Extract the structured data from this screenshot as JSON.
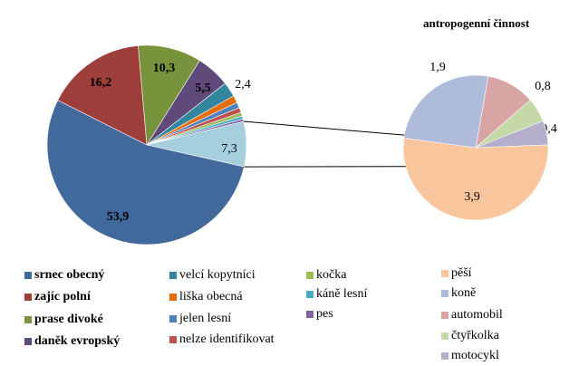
{
  "chart_data": [
    {
      "type": "pie",
      "title": "",
      "slices": [
        {
          "name": "prase divoké",
          "value": 10.3,
          "color": "#77933c",
          "label": "10,3",
          "bold": true
        },
        {
          "name": "daněk evropský",
          "value": 5.5,
          "color": "#604a7b",
          "label": "5,5",
          "bold": true
        },
        {
          "name": "velcí kopytníci",
          "value": 2.4,
          "color": "#31859c",
          "label": "2,4",
          "bold": false
        },
        {
          "name": "liška obecná",
          "value": 1.2,
          "color": "#e46c0a",
          "label": ""
        },
        {
          "name": "jelen lesní",
          "value": 0.9,
          "color": "#4f81bd",
          "label": ""
        },
        {
          "name": "nelze identifikovat",
          "value": 0.8,
          "color": "#c0504d",
          "label": ""
        },
        {
          "name": "kočka",
          "value": 0.6,
          "color": "#9bbb59",
          "label": ""
        },
        {
          "name": "káně lesní",
          "value": 0.5,
          "color": "#4bacc6",
          "label": ""
        },
        {
          "name": "pes",
          "value": 0.4,
          "color": "#8064a2",
          "label": ""
        },
        {
          "name": "antropogenní činnost",
          "value": 7.3,
          "color": "#a5cfdc",
          "label": "7,3",
          "bold": false
        },
        {
          "name": "srnec obecný",
          "value": 53.9,
          "color": "#41699c",
          "label": "53,9",
          "bold": true
        },
        {
          "name": "zajíc polní",
          "value": 16.2,
          "color": "#9e3f3c",
          "label": "16,2",
          "bold": true
        }
      ]
    },
    {
      "type": "pie",
      "title": "antropogenní činnost",
      "slices": [
        {
          "name": "automobil",
          "value": 0.8,
          "color": "#d9a5a4",
          "label": "0,8"
        },
        {
          "name": "čtyřkolka",
          "value": 0.4,
          "color": "#c4d8a8",
          "label": "0,4"
        },
        {
          "name": "motocykl",
          "value": 0.4,
          "color": "#b4aecb",
          "label": "0,4"
        },
        {
          "name": "pěší",
          "value": 3.9,
          "color": "#f9c59c",
          "label": "3,9"
        },
        {
          "name": "koně",
          "value": 1.9,
          "color": "#aebbd9",
          "label": "1,9"
        }
      ]
    }
  ],
  "legend": [
    {
      "name": "srnec obecný",
      "color": "#41699c",
      "bold": true
    },
    {
      "name": "zajíc polní",
      "color": "#9e3f3c",
      "bold": true
    },
    {
      "name": "prase divoké",
      "color": "#77933c",
      "bold": true
    },
    {
      "name": "daněk evropský",
      "color": "#604a7b",
      "bold": true
    },
    {
      "name": "velcí kopytníci",
      "color": "#31859c"
    },
    {
      "name": "liška obecná",
      "color": "#e46c0a"
    },
    {
      "name": "jelen lesní",
      "color": "#4f81bd"
    },
    {
      "name": "nelze identifikovat",
      "color": "#c0504d"
    },
    {
      "name": "kočka",
      "color": "#9bbb59"
    },
    {
      "name": "káně lesní",
      "color": "#4bacc6"
    },
    {
      "name": "pes",
      "color": "#8064a2"
    },
    {
      "name": "pěší",
      "color": "#f9c59c"
    },
    {
      "name": "koně",
      "color": "#aebbd9"
    },
    {
      "name": "automobil",
      "color": "#d9a5a4"
    },
    {
      "name": "čtyřkolka",
      "color": "#c4d8a8"
    },
    {
      "name": "motocykl",
      "color": "#b4aecb"
    }
  ]
}
